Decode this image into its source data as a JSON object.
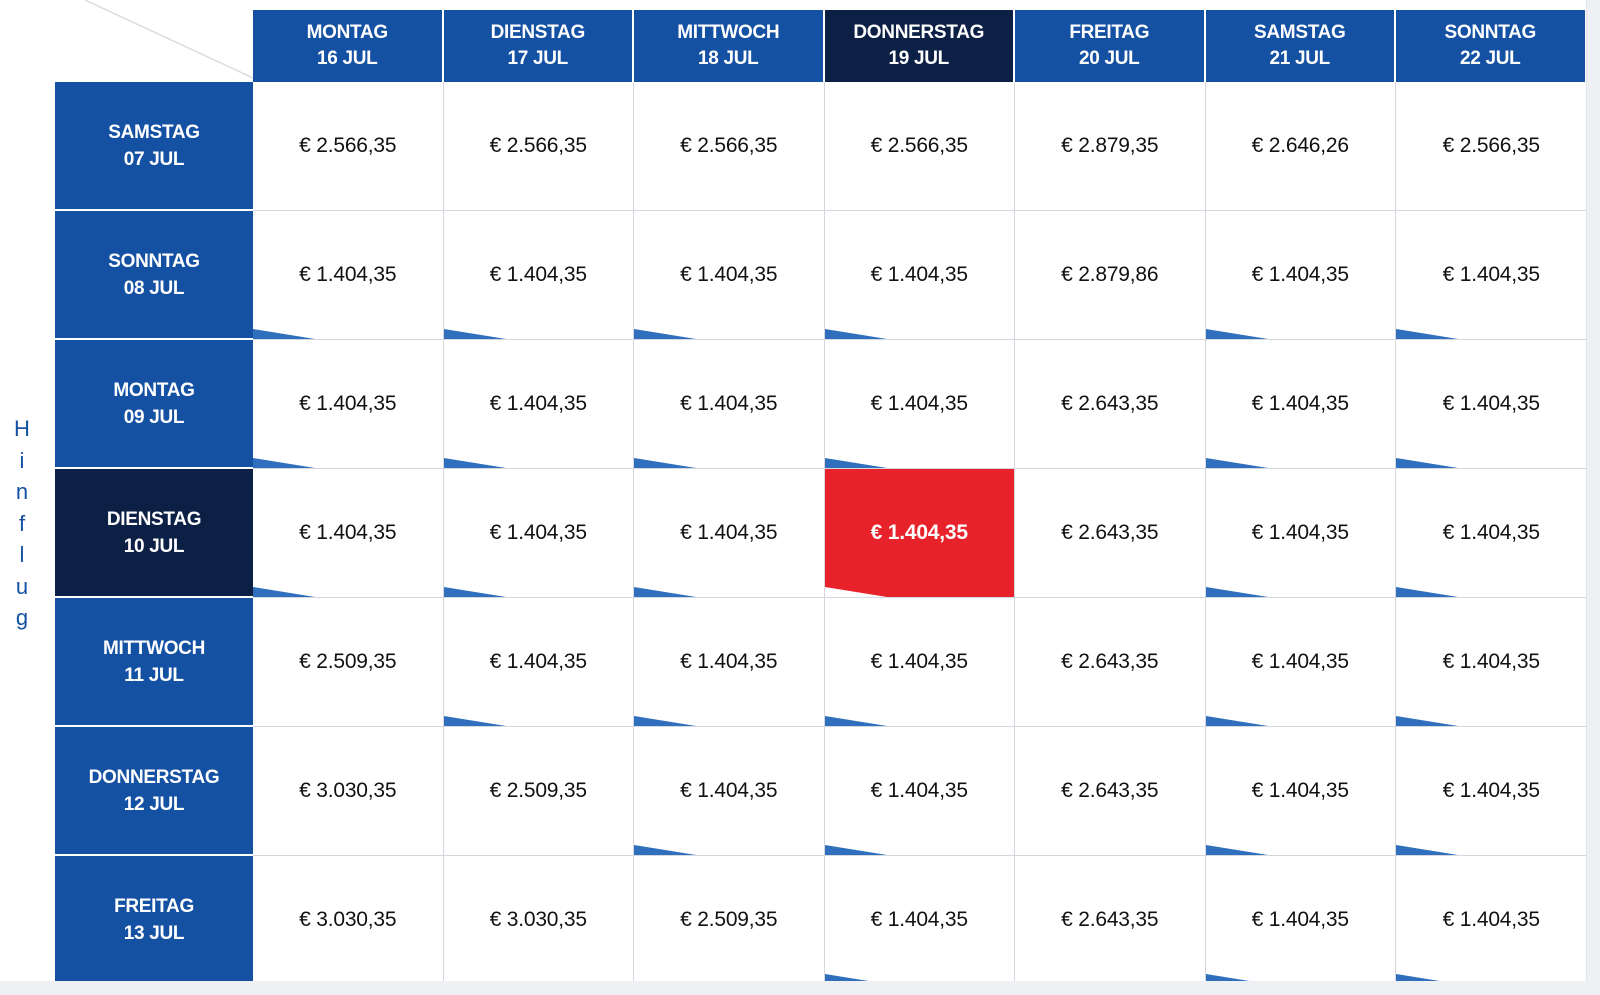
{
  "side_label": "Hinflug",
  "columns": [
    {
      "day": "MONTAG",
      "date": "16 JUL",
      "selected": false
    },
    {
      "day": "DIENSTAG",
      "date": "17 JUL",
      "selected": false
    },
    {
      "day": "MITTWOCH",
      "date": "18 JUL",
      "selected": false
    },
    {
      "day": "DONNERSTAG",
      "date": "19 JUL",
      "selected": true
    },
    {
      "day": "FREITAG",
      "date": "20 JUL",
      "selected": false
    },
    {
      "day": "SAMSTAG",
      "date": "21 JUL",
      "selected": false
    },
    {
      "day": "SONNTAG",
      "date": "22 JUL",
      "selected": false
    }
  ],
  "rows": [
    {
      "day": "SAMSTAG",
      "date": "07 JUL",
      "selected": false,
      "prices": [
        "€ 2.566,35",
        "€ 2.566,35",
        "€ 2.566,35",
        "€ 2.566,35",
        "€ 2.879,35",
        "€ 2.646,26",
        "€ 2.566,35"
      ],
      "flags": [
        false,
        false,
        false,
        false,
        false,
        false,
        false
      ]
    },
    {
      "day": "SONNTAG",
      "date": "08 JUL",
      "selected": false,
      "prices": [
        "€ 1.404,35",
        "€ 1.404,35",
        "€ 1.404,35",
        "€ 1.404,35",
        "€ 2.879,86",
        "€ 1.404,35",
        "€ 1.404,35"
      ],
      "flags": [
        true,
        true,
        true,
        true,
        false,
        true,
        true
      ]
    },
    {
      "day": "MONTAG",
      "date": "09 JUL",
      "selected": false,
      "prices": [
        "€ 1.404,35",
        "€ 1.404,35",
        "€ 1.404,35",
        "€ 1.404,35",
        "€ 2.643,35",
        "€ 1.404,35",
        "€ 1.404,35"
      ],
      "flags": [
        true,
        true,
        true,
        true,
        false,
        true,
        true
      ]
    },
    {
      "day": "DIENSTAG",
      "date": "10 JUL",
      "selected": true,
      "prices": [
        "€ 1.404,35",
        "€ 1.404,35",
        "€ 1.404,35",
        "€ 1.404,35",
        "€ 2.643,35",
        "€ 1.404,35",
        "€ 1.404,35"
      ],
      "flags": [
        true,
        true,
        true,
        true,
        false,
        true,
        true
      ]
    },
    {
      "day": "MITTWOCH",
      "date": "11 JUL",
      "selected": false,
      "prices": [
        "€ 2.509,35",
        "€ 1.404,35",
        "€ 1.404,35",
        "€ 1.404,35",
        "€ 2.643,35",
        "€ 1.404,35",
        "€ 1.404,35"
      ],
      "flags": [
        false,
        true,
        true,
        true,
        false,
        true,
        true
      ]
    },
    {
      "day": "DONNERSTAG",
      "date": "12 JUL",
      "selected": false,
      "prices": [
        "€ 3.030,35",
        "€ 2.509,35",
        "€ 1.404,35",
        "€ 1.404,35",
        "€ 2.643,35",
        "€ 1.404,35",
        "€ 1.404,35"
      ],
      "flags": [
        false,
        false,
        true,
        true,
        false,
        true,
        true
      ]
    },
    {
      "day": "FREITAG",
      "date": "13 JUL",
      "selected": false,
      "prices": [
        "€ 3.030,35",
        "€ 3.030,35",
        "€ 2.509,35",
        "€ 1.404,35",
        "€ 2.643,35",
        "€ 1.404,35",
        "€ 1.404,35"
      ],
      "flags": [
        false,
        false,
        false,
        true,
        false,
        true,
        true
      ]
    }
  ],
  "selected_cell": {
    "row": 3,
    "col": 3
  },
  "colors": {
    "header_blue": "#1551a3",
    "selected_navy": "#0c1f45",
    "selected_red": "#e8222a",
    "flag_blue": "#2f6fbd"
  }
}
